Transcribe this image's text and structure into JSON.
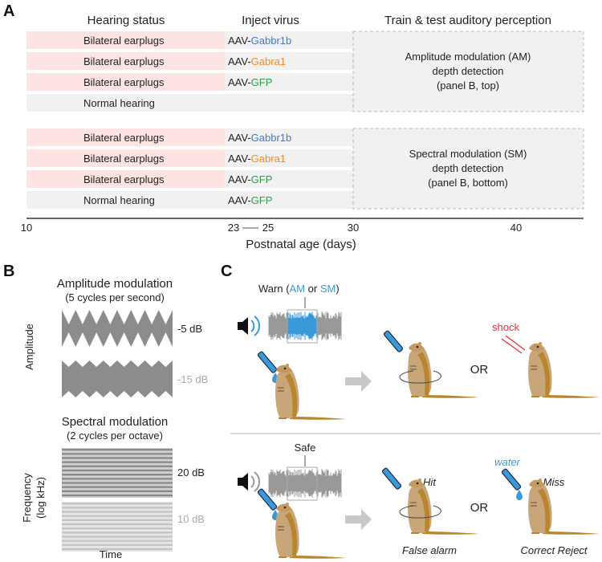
{
  "colors": {
    "pink": "#fde3e1",
    "gray": "#f1f1f1",
    "blue": "#4a78c4",
    "orange": "#f08a2c",
    "green": "#2ea040",
    "cyan": "#3a9ad9",
    "red": "#e8303a",
    "wave": "#8c8c8c"
  },
  "panelA": {
    "label": "A",
    "headers": {
      "hearing": "Hearing status",
      "virus": "Inject virus",
      "train": "Train & test auditory perception"
    },
    "groups": [
      {
        "rows": [
          {
            "hearing": "Bilateral earplugs",
            "prefix": "AAV-",
            "gene": "Gabbr1b",
            "gene_color": "blue",
            "earplug": true
          },
          {
            "hearing": "Bilateral earplugs",
            "prefix": "AAV-",
            "gene": "Gabra1",
            "gene_color": "orange",
            "earplug": true
          },
          {
            "hearing": "Bilateral earplugs",
            "prefix": "AAV-",
            "gene": "GFP",
            "gene_color": "green",
            "earplug": true
          },
          {
            "hearing": "Normal hearing",
            "prefix": "",
            "gene": "",
            "gene_color": "green",
            "earplug": false
          }
        ],
        "task": [
          "Amplitude modulation (AM)",
          "depth detection",
          "(panel B, top)"
        ]
      },
      {
        "rows": [
          {
            "hearing": "Bilateral earplugs",
            "prefix": "AAV-",
            "gene": "Gabbr1b",
            "gene_color": "blue",
            "earplug": true
          },
          {
            "hearing": "Bilateral earplugs",
            "prefix": "AAV-",
            "gene": "Gabra1",
            "gene_color": "orange",
            "earplug": true
          },
          {
            "hearing": "Bilateral earplugs",
            "prefix": "AAV-",
            "gene": "GFP",
            "gene_color": "green",
            "earplug": true
          },
          {
            "hearing": "Normal hearing",
            "prefix": "AAV-",
            "gene": "GFP",
            "gene_color": "green",
            "earplug": false
          }
        ],
        "task": [
          "Spectral modulation (SM)",
          "depth detection",
          "(panel B, bottom)"
        ]
      }
    ],
    "axis": {
      "ticks": [
        "10",
        "23",
        "25",
        "30",
        "40"
      ],
      "label": "Postnatal age (days)"
    }
  },
  "panelB": {
    "label": "B",
    "am": {
      "title": "Amplitude modulation",
      "subtitle": "(5 cycles per second)",
      "ylabel": "Amplitude",
      "levels": [
        "-5 dB",
        "-15 dB"
      ],
      "cycles": 8
    },
    "sm": {
      "title": "Spectral modulation",
      "subtitle": "(2 cycles per octave)",
      "ylabel1": "Frequency",
      "ylabel2": "(log kHz)",
      "xlabel": "Time",
      "levels": [
        "20 dB",
        "10 dB"
      ]
    }
  },
  "panelC": {
    "label": "C",
    "warn": {
      "prefix": "Warn (",
      "am": "AM",
      "mid": " or ",
      "sm": "SM",
      "suffix": ")"
    },
    "safe": "Safe",
    "shock": "shock",
    "water": "water",
    "or": "OR",
    "outcomes": {
      "hit": "Hit",
      "miss": "Miss",
      "false_alarm": "False alarm",
      "correct_reject": "Correct Reject"
    }
  }
}
